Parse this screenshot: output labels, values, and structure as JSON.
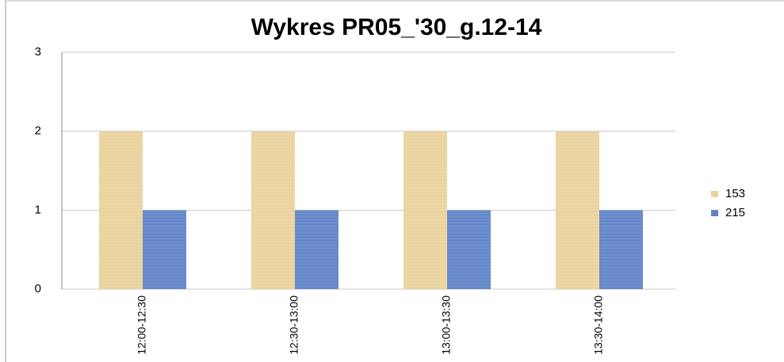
{
  "chart_data": {
    "type": "bar",
    "title": "Wykres PR05_'30_g.12-14",
    "categories": [
      "12:00-12:30",
      "12:30-13:00",
      "13:00-13:30",
      "13:30-14:00"
    ],
    "series": [
      {
        "name": "153",
        "color": "#e9d29c",
        "values": [
          2,
          2,
          2,
          2
        ]
      },
      {
        "name": "215",
        "color": "#5f82c8",
        "values": [
          1,
          1,
          1,
          1
        ]
      }
    ],
    "ylim": [
      0,
      3
    ],
    "yticks": [
      0,
      1,
      2,
      3
    ],
    "grid": true,
    "legend": "right"
  }
}
